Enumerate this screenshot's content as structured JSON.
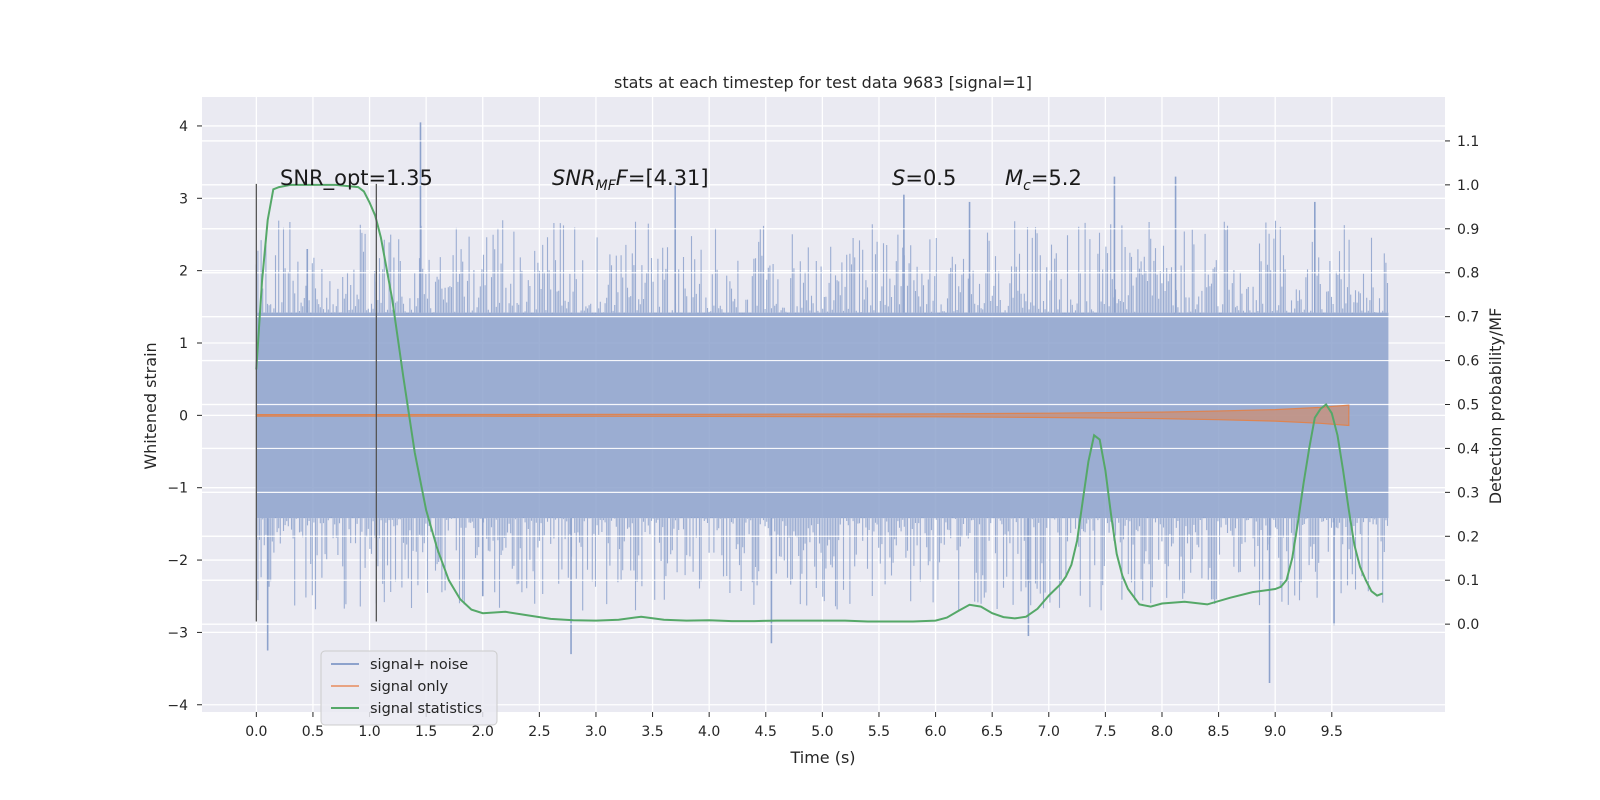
{
  "chart_data": {
    "type": "line",
    "title": "stats at each timestep for test data 9683 [signal=1]",
    "xlabel": "Time (s)",
    "ylabel_left": "Whitened strain",
    "ylabel_right": "Detection probability/MF",
    "x_ticks": [
      "0.0",
      "0.5",
      "1.0",
      "1.5",
      "2.0",
      "2.5",
      "3.0",
      "3.5",
      "4.0",
      "4.5",
      "5.0",
      "5.5",
      "6.0",
      "6.5",
      "7.0",
      "7.5",
      "8.0",
      "8.5",
      "9.0",
      "9.5"
    ],
    "x_tick_values": [
      0,
      0.5,
      1,
      1.5,
      2,
      2.5,
      3,
      3.5,
      4,
      4.5,
      5,
      5.5,
      6,
      6.5,
      7,
      7.5,
      8,
      8.5,
      9,
      9.5
    ],
    "xlim": [
      -0.48,
      10.5
    ],
    "y_left_ticks": [
      "4",
      "3",
      "2",
      "1",
      "0",
      "−1",
      "−2",
      "−3",
      "−4"
    ],
    "y_left_tick_values": [
      4,
      3,
      2,
      1,
      0,
      -1,
      -2,
      -3,
      -4
    ],
    "ylim_left": [
      -4.1,
      4.4
    ],
    "y_right_ticks": [
      "1.1",
      "1.0",
      "0.9",
      "0.8",
      "0.7",
      "0.6",
      "0.5",
      "0.4",
      "0.3",
      "0.2",
      "0.1",
      "0.0"
    ],
    "y_right_tick_values": [
      1.1,
      1.0,
      0.9,
      0.8,
      0.7,
      0.6,
      0.5,
      0.4,
      0.3,
      0.2,
      0.1,
      0.0
    ],
    "ylim_right": [
      -0.2,
      1.2
    ],
    "grid": true,
    "annotations": [
      {
        "text": "SNR_opt=1.35",
        "x": 0.2,
        "y": 3.3
      },
      {
        "base": "SNR",
        "sub": "MF",
        "tail": "=[4.31]",
        "x": 2.6,
        "y": 3.3
      },
      {
        "base": "S",
        "sub": "",
        "tail": "=0.5",
        "x": 5.6,
        "y": 3.3
      },
      {
        "base": "M",
        "sub": "c",
        "tail": "=5.2",
        "x": 6.6,
        "y": 3.3
      }
    ],
    "vlines": [
      {
        "x": 0.0,
        "ymin": -2.85,
        "ymax": 3.2
      },
      {
        "x": 1.06,
        "ymin": -2.85,
        "ymax": 3.2
      }
    ],
    "legend": {
      "placement": "lower-left"
    },
    "series": [
      {
        "name": "signal+ noise",
        "axis": "left",
        "color": "#8da2cc",
        "t_start": 0.0,
        "t_end": 10.0,
        "band": [
          -1.42,
          1.42
        ],
        "spikes": [
          {
            "x": 0.1,
            "y": -3.25
          },
          {
            "x": 1.45,
            "y": 4.05
          },
          {
            "x": 2.78,
            "y": -3.3
          },
          {
            "x": 3.7,
            "y": 3.2
          },
          {
            "x": 4.55,
            "y": -3.15
          },
          {
            "x": 5.72,
            "y": 3.05
          },
          {
            "x": 6.82,
            "y": -3.05
          },
          {
            "x": 7.58,
            "y": 3.3
          },
          {
            "x": 8.12,
            "y": 3.3
          },
          {
            "x": 8.95,
            "y": -3.7
          },
          {
            "x": 9.35,
            "y": 2.95
          },
          {
            "x": 9.52,
            "y": -2.9
          },
          {
            "x": 0.45,
            "y": 2.3
          },
          {
            "x": 2.0,
            "y": -2.5
          },
          {
            "x": 6.3,
            "y": 2.95
          }
        ]
      },
      {
        "name": "signal only",
        "axis": "left",
        "color": "#dd8452",
        "x": [
          0.0,
          2.0,
          4.0,
          6.0,
          7.0,
          8.0,
          8.5,
          9.0,
          9.4,
          9.65
        ],
        "amp": [
          0.01,
          0.012,
          0.015,
          0.02,
          0.03,
          0.045,
          0.06,
          0.08,
          0.11,
          0.14
        ]
      },
      {
        "name": "signal statistics",
        "axis": "right",
        "color": "#55a868",
        "x": [
          0.0,
          0.05,
          0.1,
          0.15,
          0.2,
          0.3,
          0.5,
          0.7,
          0.9,
          0.95,
          1.0,
          1.05,
          1.1,
          1.2,
          1.3,
          1.4,
          1.5,
          1.6,
          1.7,
          1.8,
          1.9,
          2.0,
          2.2,
          2.4,
          2.6,
          2.8,
          3.0,
          3.2,
          3.4,
          3.6,
          3.8,
          4.0,
          4.2,
          4.4,
          4.6,
          4.8,
          5.0,
          5.2,
          5.4,
          5.6,
          5.8,
          6.0,
          6.1,
          6.2,
          6.3,
          6.4,
          6.5,
          6.6,
          6.7,
          6.8,
          6.9,
          7.0,
          7.1,
          7.15,
          7.2,
          7.25,
          7.3,
          7.35,
          7.4,
          7.45,
          7.5,
          7.55,
          7.6,
          7.65,
          7.7,
          7.8,
          7.9,
          8.0,
          8.2,
          8.4,
          8.6,
          8.8,
          9.0,
          9.05,
          9.1,
          9.15,
          9.2,
          9.25,
          9.3,
          9.35,
          9.4,
          9.45,
          9.5,
          9.55,
          9.6,
          9.65,
          9.7,
          9.75,
          9.8,
          9.85,
          9.9,
          9.95
        ],
        "y": [
          0.58,
          0.78,
          0.92,
          0.99,
          0.995,
          1.0,
          1.0,
          1.0,
          0.995,
          0.985,
          0.96,
          0.93,
          0.88,
          0.74,
          0.56,
          0.39,
          0.26,
          0.17,
          0.1,
          0.057,
          0.033,
          0.025,
          0.028,
          0.02,
          0.012,
          0.009,
          0.008,
          0.01,
          0.017,
          0.01,
          0.008,
          0.009,
          0.007,
          0.007,
          0.008,
          0.008,
          0.008,
          0.008,
          0.006,
          0.006,
          0.006,
          0.008,
          0.015,
          0.03,
          0.044,
          0.04,
          0.025,
          0.016,
          0.013,
          0.017,
          0.035,
          0.065,
          0.09,
          0.108,
          0.135,
          0.19,
          0.28,
          0.37,
          0.43,
          0.42,
          0.35,
          0.25,
          0.16,
          0.11,
          0.08,
          0.045,
          0.04,
          0.047,
          0.051,
          0.045,
          0.06,
          0.073,
          0.08,
          0.085,
          0.1,
          0.15,
          0.23,
          0.32,
          0.4,
          0.47,
          0.49,
          0.5,
          0.48,
          0.43,
          0.35,
          0.26,
          0.18,
          0.13,
          0.1,
          0.075,
          0.065,
          0.07
        ]
      }
    ]
  }
}
